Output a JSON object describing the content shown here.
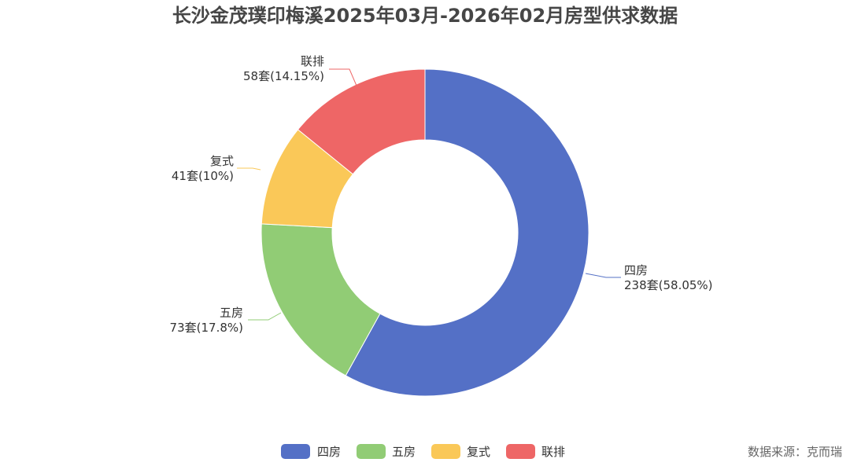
{
  "chart_data": {
    "type": "pie",
    "title": "长沙金茂璞印梅溪2025年03月-2026年02月房型供求数据",
    "unit": "套",
    "slices": [
      {
        "name": "四房",
        "value": 238,
        "percent": "58.05%",
        "label": "238套(58.05%)",
        "color": "#5470c6"
      },
      {
        "name": "五房",
        "value": 73,
        "percent": "17.8%",
        "label": "73套(17.8%)",
        "color": "#91cc75"
      },
      {
        "name": "复式",
        "value": 41,
        "percent": "10%",
        "label": "41套(10%)",
        "color": "#fac858"
      },
      {
        "name": "联排",
        "value": 58,
        "percent": "14.15%",
        "label": "58套(14.15%)",
        "color": "#ee6666"
      }
    ],
    "legend_position": "bottom-center",
    "source": "数据来源：克而瑞"
  }
}
